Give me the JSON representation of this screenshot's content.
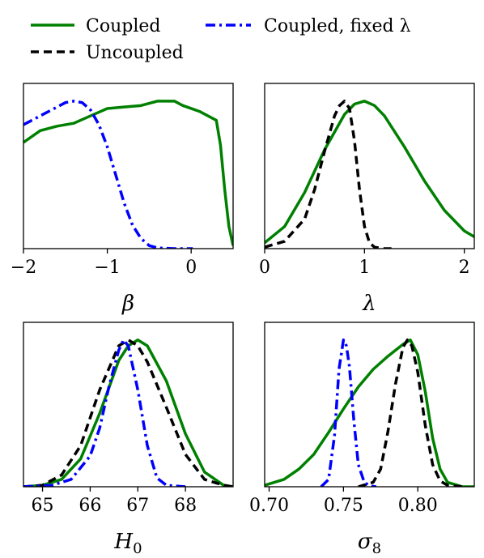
{
  "legend": {
    "entries": [
      {
        "label": "Coupled",
        "color": "#008000",
        "dash": "solid"
      },
      {
        "label": "Coupled, fixed λ",
        "color": "#0000ff",
        "dash": "dashdot"
      },
      {
        "label": "Uncoupled",
        "color": "#000000",
        "dash": "dashed"
      }
    ]
  },
  "chart_data": [
    {
      "type": "line",
      "xlabel": "β",
      "xlim": [
        -2.0,
        0.5
      ],
      "ylim": [
        0,
        1.12
      ],
      "xticks": [
        -2,
        -1,
        0
      ],
      "xtick_labels": [
        "−2",
        "−1",
        "0"
      ],
      "series": [
        {
          "name": "Coupled",
          "color": "#008000",
          "dash": "solid",
          "x": [
            -2.0,
            -1.8,
            -1.6,
            -1.4,
            -1.2,
            -1.0,
            -0.8,
            -0.6,
            -0.4,
            -0.3,
            -0.2,
            -0.1,
            0.0,
            0.1,
            0.2,
            0.3,
            0.35,
            0.4,
            0.45,
            0.5
          ],
          "y": [
            0.72,
            0.8,
            0.83,
            0.85,
            0.9,
            0.95,
            0.96,
            0.97,
            1.0,
            1.0,
            1.0,
            0.97,
            0.95,
            0.93,
            0.9,
            0.87,
            0.7,
            0.4,
            0.15,
            0.02
          ]
        },
        {
          "name": "Coupled, fixed λ",
          "color": "#0000ff",
          "dash": "dashdot",
          "x": [
            -2.0,
            -1.8,
            -1.6,
            -1.5,
            -1.4,
            -1.3,
            -1.2,
            -1.1,
            -1.0,
            -0.9,
            -0.8,
            -0.7,
            -0.6,
            -0.5,
            -0.4,
            -0.2,
            0.0,
            0.02
          ],
          "y": [
            0.84,
            0.9,
            0.96,
            0.99,
            1.0,
            0.99,
            0.94,
            0.84,
            0.69,
            0.5,
            0.31,
            0.16,
            0.07,
            0.02,
            0.005,
            0.0,
            0.0,
            0.0
          ]
        }
      ]
    },
    {
      "type": "line",
      "xlabel": "λ",
      "xlim": [
        0.0,
        2.1
      ],
      "ylim": [
        0,
        1.12
      ],
      "xticks": [
        0,
        1,
        2
      ],
      "xtick_labels": [
        "0",
        "1",
        "2"
      ],
      "series": [
        {
          "name": "Coupled",
          "color": "#008000",
          "dash": "solid",
          "x": [
            0.0,
            0.2,
            0.4,
            0.6,
            0.8,
            0.9,
            1.0,
            1.1,
            1.2,
            1.4,
            1.6,
            1.8,
            2.0,
            2.1
          ],
          "y": [
            0.04,
            0.15,
            0.38,
            0.67,
            0.91,
            0.98,
            1.0,
            0.97,
            0.9,
            0.69,
            0.46,
            0.26,
            0.12,
            0.08
          ]
        },
        {
          "name": "Uncoupled",
          "color": "#000000",
          "dash": "dashed",
          "x": [
            0.0,
            0.2,
            0.4,
            0.5,
            0.6,
            0.7,
            0.75,
            0.8,
            0.85,
            0.9,
            0.95,
            1.0,
            1.05,
            1.1,
            1.2,
            1.3
          ],
          "y": [
            0.01,
            0.05,
            0.2,
            0.4,
            0.66,
            0.9,
            0.97,
            1.0,
            0.95,
            0.73,
            0.4,
            0.15,
            0.04,
            0.01,
            0.0,
            0.0
          ]
        }
      ]
    },
    {
      "type": "line",
      "xlabel": "H",
      "xlabel_sub": "0",
      "xlim": [
        64.6,
        69.0
      ],
      "ylim": [
        0,
        1.12
      ],
      "xticks": [
        65,
        66,
        67,
        68
      ],
      "xtick_labels": [
        "65",
        "66",
        "67",
        "68"
      ],
      "series": [
        {
          "name": "Coupled",
          "color": "#008000",
          "dash": "solid",
          "x": [
            64.6,
            65.0,
            65.4,
            65.8,
            66.2,
            66.6,
            66.8,
            67.0,
            67.2,
            67.6,
            68.0,
            68.4,
            68.8,
            69.0
          ],
          "y": [
            0.0,
            0.01,
            0.05,
            0.19,
            0.5,
            0.86,
            0.96,
            1.0,
            0.96,
            0.72,
            0.36,
            0.1,
            0.01,
            0.0
          ]
        },
        {
          "name": "Uncoupled",
          "color": "#000000",
          "dash": "dashed",
          "x": [
            64.6,
            65.0,
            65.4,
            65.8,
            66.2,
            66.6,
            66.8,
            67.0,
            67.2,
            67.6,
            68.0,
            68.4,
            68.8,
            69.0
          ],
          "y": [
            0.0,
            0.01,
            0.08,
            0.28,
            0.66,
            0.96,
            1.0,
            0.96,
            0.85,
            0.54,
            0.22,
            0.05,
            0.01,
            0.0
          ]
        },
        {
          "name": "Coupled, fixed λ",
          "color": "#0000ff",
          "dash": "dashdot",
          "x": [
            64.6,
            65.2,
            65.6,
            66.0,
            66.2,
            66.4,
            66.6,
            66.7,
            66.8,
            67.0,
            67.2,
            67.4,
            67.6,
            68.0
          ],
          "y": [
            0.0,
            0.01,
            0.05,
            0.21,
            0.4,
            0.69,
            0.93,
            1.0,
            0.96,
            0.66,
            0.28,
            0.06,
            0.01,
            0.0
          ]
        }
      ]
    },
    {
      "type": "line",
      "xlabel": "σ",
      "xlabel_sub": "8",
      "xlim": [
        0.697,
        0.838
      ],
      "ylim": [
        0,
        1.12
      ],
      "xticks": [
        0.7,
        0.75,
        0.8
      ],
      "xtick_labels": [
        "0.70",
        "0.75",
        "0.80"
      ],
      "series": [
        {
          "name": "Coupled",
          "color": "#008000",
          "dash": "solid",
          "x": [
            0.697,
            0.71,
            0.72,
            0.73,
            0.74,
            0.75,
            0.76,
            0.77,
            0.78,
            0.79,
            0.795,
            0.8,
            0.805,
            0.81,
            0.815,
            0.82,
            0.83,
            0.838
          ],
          "y": [
            0.01,
            0.05,
            0.12,
            0.22,
            0.37,
            0.53,
            0.68,
            0.8,
            0.89,
            0.97,
            1.0,
            0.9,
            0.65,
            0.33,
            0.12,
            0.03,
            0.0,
            0.0
          ]
        },
        {
          "name": "Uncoupled",
          "color": "#000000",
          "dash": "dashed",
          "x": [
            0.76,
            0.77,
            0.775,
            0.78,
            0.785,
            0.79,
            0.793,
            0.796,
            0.8,
            0.805,
            0.81,
            0.815,
            0.82,
            0.83
          ],
          "y": [
            0.0,
            0.03,
            0.12,
            0.38,
            0.7,
            0.95,
            1.0,
            0.96,
            0.78,
            0.42,
            0.15,
            0.04,
            0.01,
            0.0
          ]
        },
        {
          "name": "Coupled, fixed λ",
          "color": "#0000ff",
          "dash": "dashdot",
          "x": [
            0.735,
            0.74,
            0.744,
            0.747,
            0.75,
            0.752,
            0.754,
            0.757,
            0.76,
            0.764,
            0.768,
            0.772
          ],
          "y": [
            0.0,
            0.05,
            0.35,
            0.8,
            1.0,
            0.96,
            0.82,
            0.45,
            0.15,
            0.03,
            0.005,
            0.0
          ]
        }
      ]
    }
  ]
}
